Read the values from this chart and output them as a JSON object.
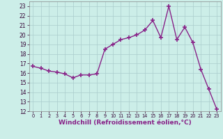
{
  "x": [
    0,
    1,
    2,
    3,
    4,
    5,
    6,
    7,
    8,
    9,
    10,
    11,
    12,
    13,
    14,
    15,
    16,
    17,
    18,
    19,
    20,
    21,
    22,
    23
  ],
  "y": [
    16.7,
    16.5,
    16.2,
    16.1,
    15.9,
    15.5,
    15.8,
    15.8,
    15.9,
    18.5,
    19.0,
    19.5,
    19.7,
    20.0,
    20.5,
    21.5,
    19.7,
    23.0,
    19.5,
    20.8,
    19.2,
    16.4,
    14.3,
    12.2
  ],
  "line_color": "#882288",
  "marker": "+",
  "marker_size": 4,
  "marker_lw": 1.2,
  "bg_color": "#cceee8",
  "grid_color": "#aacccc",
  "xlabel": "Windchill (Refroidissement éolien,°C)",
  "xlabel_color": "#882288",
  "ylim": [
    12,
    23.5
  ],
  "xlim": [
    -0.5,
    23.5
  ],
  "yticks": [
    12,
    13,
    14,
    15,
    16,
    17,
    18,
    19,
    20,
    21,
    22,
    23
  ],
  "xticks": [
    0,
    1,
    2,
    3,
    4,
    5,
    6,
    7,
    8,
    9,
    10,
    11,
    12,
    13,
    14,
    15,
    16,
    17,
    18,
    19,
    20,
    21,
    22,
    23
  ],
  "ytick_label_size": 5.5,
  "xtick_label_size": 4.8,
  "xlabel_size": 6.5,
  "linewidth": 1.0
}
